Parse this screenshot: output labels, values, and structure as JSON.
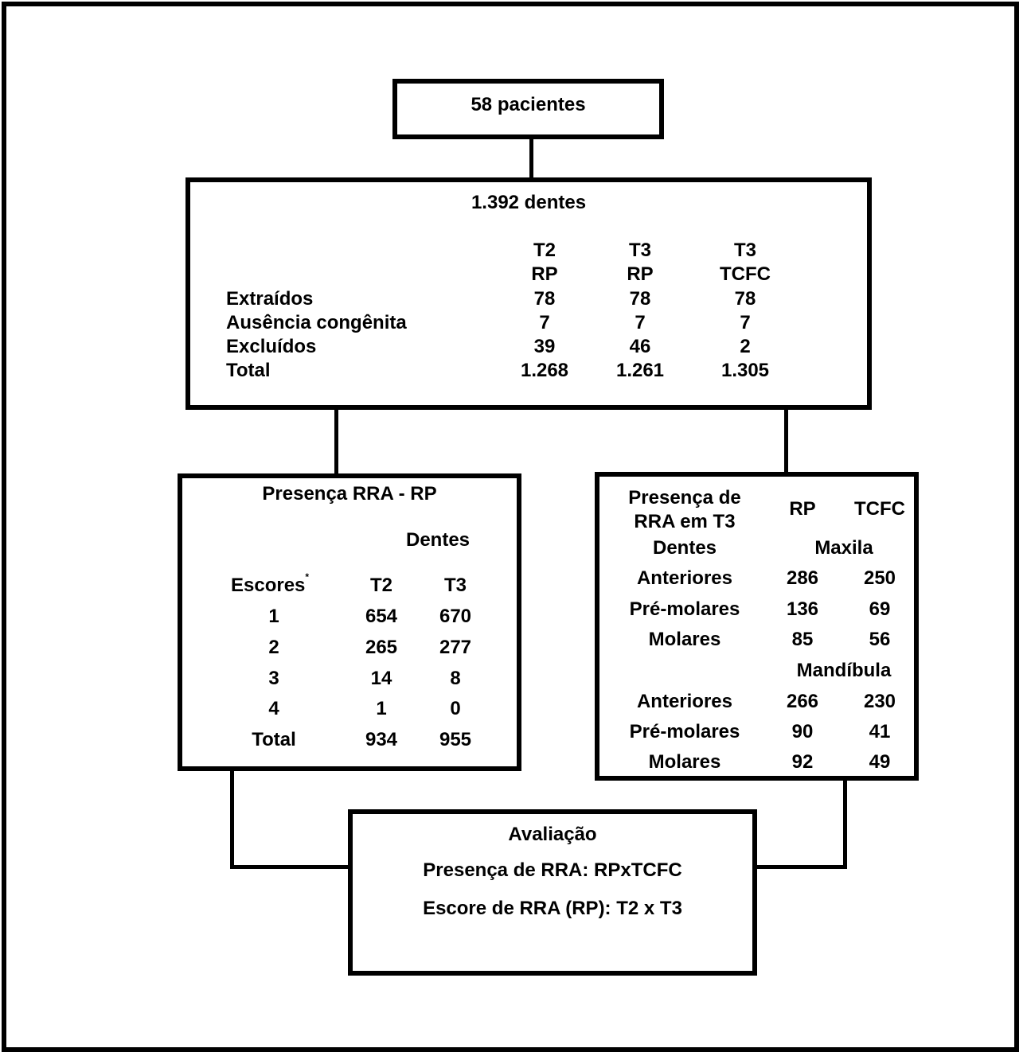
{
  "patients": {
    "label": "58 pacientes"
  },
  "teeth": {
    "title": "1.392 dentes",
    "columns": [
      {
        "line1": "T2",
        "line2": "RP"
      },
      {
        "line1": "T3",
        "line2": "RP"
      },
      {
        "line1": "T3",
        "line2": "TCFC"
      }
    ],
    "rows": [
      {
        "label": "Extraídos",
        "values": [
          "78",
          "78",
          "78"
        ]
      },
      {
        "label": "Ausência congênita",
        "values": [
          "7",
          "7",
          "7"
        ]
      },
      {
        "label": "Excluídos",
        "values": [
          "39",
          "46",
          "2"
        ]
      },
      {
        "label": "Total",
        "values": [
          "1.268",
          "1.261",
          "1.305"
        ]
      }
    ]
  },
  "rra_rp": {
    "title": "Presença RRA - RP",
    "subheader": "Dentes",
    "scores_label": "Escores",
    "scores_mark": "*",
    "columns": [
      "T2",
      "T3"
    ],
    "rows": [
      {
        "label": "1",
        "values": [
          "654",
          "670"
        ]
      },
      {
        "label": "2",
        "values": [
          "265",
          "277"
        ]
      },
      {
        "label": "3",
        "values": [
          "14",
          "8"
        ]
      },
      {
        "label": "4",
        "values": [
          "1",
          "0"
        ]
      },
      {
        "label": "Total",
        "values": [
          "934",
          "955"
        ]
      }
    ]
  },
  "rra_t3": {
    "title_line1": "Presença de",
    "title_line2": "RRA em T3",
    "columns": [
      "RP",
      "TCFC"
    ],
    "teeth_label": "Dentes",
    "maxila": {
      "label": "Maxila",
      "rows": [
        {
          "label": "Anteriores",
          "values": [
            "286",
            "250"
          ]
        },
        {
          "label": "Pré-molares",
          "values": [
            "136",
            "69"
          ]
        },
        {
          "label": "Molares",
          "values": [
            "85",
            "56"
          ]
        }
      ]
    },
    "mandibula": {
      "label": "Mandíbula",
      "rows": [
        {
          "label": "Anteriores",
          "values": [
            "266",
            "230"
          ]
        },
        {
          "label": "Pré-molares",
          "values": [
            "90",
            "41"
          ]
        },
        {
          "label": "Molares",
          "values": [
            "92",
            "49"
          ]
        }
      ]
    }
  },
  "evaluation": {
    "title": "Avaliação",
    "line1": "Presença de RRA: RPxTCFC",
    "line2": "Escore de RRA (RP): T2 x T3"
  }
}
